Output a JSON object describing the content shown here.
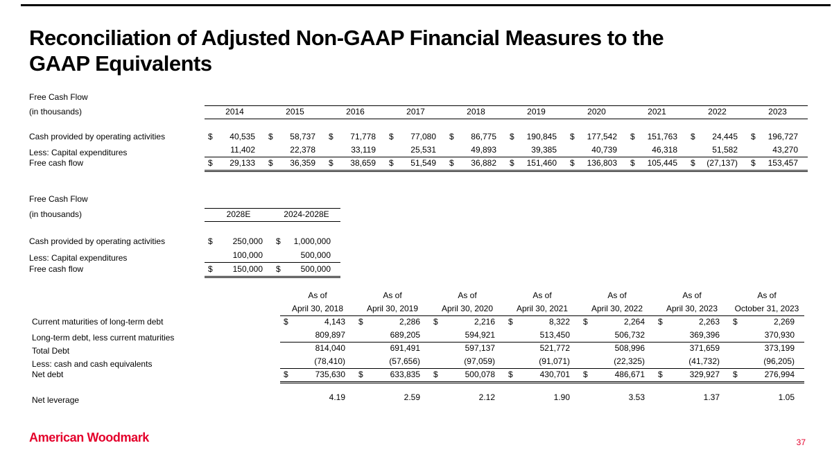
{
  "slide": {
    "title_line1": "Reconciliation of Adjusted Non-GAAP Financial Measures to the",
    "title_line2": "GAAP Equivalents",
    "logo_text": "American Woodmark",
    "page_number": "37"
  },
  "colors": {
    "accent_red": "#E4002B",
    "text": "#000000",
    "rule": "#000000"
  },
  "fcf_historical": {
    "caption": "Free Cash Flow",
    "units": "(in thousands)",
    "years": [
      "2014",
      "2015",
      "2016",
      "2017",
      "2018",
      "2019",
      "2020",
      "2021",
      "2022",
      "2023"
    ],
    "rows": [
      {
        "label": "Cash provided by operating activities",
        "dollar": true,
        "values": [
          "40,535",
          "58,737",
          "71,778",
          "77,080",
          "86,775",
          "190,845",
          "177,542",
          "151,763",
          "24,445",
          "196,727"
        ]
      },
      {
        "label": "Less: Capital expenditures",
        "dollar": false,
        "underline": "single",
        "values": [
          "11,402",
          "22,378",
          "33,119",
          "25,531",
          "49,893",
          "39,385",
          "40,739",
          "46,318",
          "51,582",
          "43,270"
        ]
      },
      {
        "label": "Free cash flow",
        "dollar": true,
        "underline": "double",
        "values": [
          "29,133",
          "36,359",
          "38,659",
          "51,549",
          "36,882",
          "151,460",
          "136,803",
          "105,445",
          "(27,137)",
          "153,457"
        ]
      }
    ]
  },
  "fcf_projection": {
    "caption": "Free Cash Flow",
    "units": "(in thousands)",
    "years": [
      "2028E",
      "2024-2028E"
    ],
    "rows": [
      {
        "label": "Cash provided by operating activities",
        "dollar": true,
        "values": [
          "250,000",
          "1,000,000"
        ]
      },
      {
        "label": "Less: Capital expenditures",
        "dollar": false,
        "underline": "single",
        "values": [
          "100,000",
          "500,000"
        ]
      },
      {
        "label": "Free cash flow",
        "dollar": true,
        "underline": "double",
        "values": [
          "150,000",
          "500,000"
        ]
      }
    ]
  },
  "net_debt": {
    "as_of_label": "As of",
    "dates": [
      "April 30, 2018",
      "April 30, 2019",
      "April 30, 2020",
      "April 30, 2021",
      "April 30, 2022",
      "April 30, 2023",
      "October 31, 2023"
    ],
    "rows": [
      {
        "label": "Current maturities of long-term debt",
        "dollar": true,
        "values": [
          "4,143",
          "2,286",
          "2,216",
          "8,322",
          "2,264",
          "2,263",
          "2,269"
        ]
      },
      {
        "label": "Long-term debt, less current maturities",
        "dollar": false,
        "underline": "single",
        "values": [
          "809,897",
          "689,205",
          "594,921",
          "513,450",
          "506,732",
          "369,396",
          "370,930"
        ]
      },
      {
        "label": "Total Debt",
        "dollar": false,
        "values": [
          "814,040",
          "691,491",
          "597,137",
          "521,772",
          "508,996",
          "371,659",
          "373,199"
        ]
      },
      {
        "label": "Less: cash and cash equivalents",
        "dollar": false,
        "underline": "single",
        "values": [
          "(78,410)",
          "(57,656)",
          "(97,059)",
          "(91,071)",
          "(22,325)",
          "(41,732)",
          "(96,205)"
        ]
      },
      {
        "label": "Net debt",
        "dollar": true,
        "underline": "double",
        "values": [
          "735,630",
          "633,835",
          "500,078",
          "430,701",
          "486,671",
          "329,927",
          "276,994"
        ]
      },
      {
        "label": "Net leverage",
        "dollar": false,
        "gap_before": true,
        "values": [
          "4.19",
          "2.59",
          "2.12",
          "1.90",
          "3.53",
          "1.37",
          "1.05"
        ]
      }
    ]
  }
}
